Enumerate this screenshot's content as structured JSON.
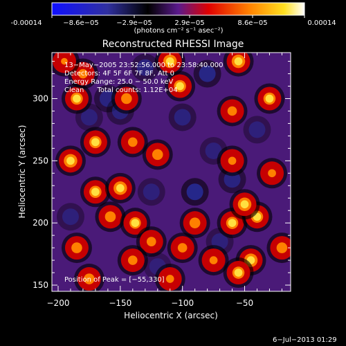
{
  "colorbar": {
    "ticks": [
      "-0.00014",
      "−8.6e−05",
      "−2.9e−05",
      "2.9e−05",
      "8.6e−05",
      "0.00014"
    ],
    "unit_label": "(photons cm⁻² s⁻¹ asec⁻²)",
    "colors": [
      "#1010ff",
      "#000000",
      "#5a1a8c",
      "#e00000",
      "#ff8000",
      "#ffe020",
      "#ffffff"
    ]
  },
  "chart_data": {
    "type": "heatmap",
    "title": "Reconstructed RHESSI Image",
    "xlabel": "Heliocentric X (arcsec)",
    "ylabel": "Heliocentric Y (arcsec)",
    "xlim": [
      -205,
      -13
    ],
    "ylim": [
      145,
      337
    ],
    "x_ticks": [
      -200,
      -150,
      -100,
      -50
    ],
    "x_tick_labels": [
      "−200",
      "−150",
      "−100",
      "−50"
    ],
    "y_ticks": [
      150,
      200,
      250,
      300
    ],
    "y_tick_labels": [
      "150",
      "200",
      "250",
      "300"
    ],
    "annotations": [
      "13−May−2005 23:52:56.000 to 23:58:40.000",
      "Detectors: 4F 5F 6F 7F 8F, Att 0",
      "Energy Range: 25.0 − 50.0 keV",
      "Clean      Total counts: 1.12E+04"
    ],
    "peak_label": "Position of Peak = [−55,330]",
    "peak": [
      -55,
      330
    ],
    "sources": [
      {
        "x": -110,
        "y": 330,
        "v": 1.0
      },
      {
        "x": -102,
        "y": 310,
        "v": 0.9
      },
      {
        "x": -55,
        "y": 330,
        "v": 1.0
      },
      {
        "x": -30,
        "y": 300,
        "v": 0.9
      },
      {
        "x": -60,
        "y": 290,
        "v": 0.7
      },
      {
        "x": -185,
        "y": 300,
        "v": 0.9
      },
      {
        "x": -180,
        "y": 320,
        "v": 0.7
      },
      {
        "x": -170,
        "y": 265,
        "v": 0.9
      },
      {
        "x": -145,
        "y": 300,
        "v": 0.8
      },
      {
        "x": -140,
        "y": 265,
        "v": 0.7
      },
      {
        "x": -120,
        "y": 255,
        "v": 0.8
      },
      {
        "x": -190,
        "y": 250,
        "v": 1.0
      },
      {
        "x": -170,
        "y": 225,
        "v": 0.9
      },
      {
        "x": -150,
        "y": 228,
        "v": 1.0
      },
      {
        "x": -158,
        "y": 205,
        "v": 0.8
      },
      {
        "x": -138,
        "y": 200,
        "v": 0.85
      },
      {
        "x": -125,
        "y": 185,
        "v": 0.7
      },
      {
        "x": -185,
        "y": 180,
        "v": 0.8
      },
      {
        "x": -140,
        "y": 170,
        "v": 0.7
      },
      {
        "x": -90,
        "y": 200,
        "v": 0.8
      },
      {
        "x": -100,
        "y": 180,
        "v": 0.7
      },
      {
        "x": -60,
        "y": 200,
        "v": 0.9
      },
      {
        "x": -40,
        "y": 205,
        "v": 0.9
      },
      {
        "x": -50,
        "y": 215,
        "v": 1.0
      },
      {
        "x": -45,
        "y": 170,
        "v": 1.0
      },
      {
        "x": -20,
        "y": 180,
        "v": 0.8
      },
      {
        "x": -75,
        "y": 170,
        "v": 0.6
      },
      {
        "x": -110,
        "y": 155,
        "v": 0.6
      },
      {
        "x": -175,
        "y": 155,
        "v": 0.8
      },
      {
        "x": -60,
        "y": 250,
        "v": 0.6
      },
      {
        "x": -28,
        "y": 240,
        "v": 0.6
      },
      {
        "x": -55,
        "y": 160,
        "v": 0.9
      },
      {
        "x": -195,
        "y": 330,
        "v": 0.5
      }
    ],
    "negatives": [
      {
        "x": -160,
        "y": 300,
        "v": 0.8
      },
      {
        "x": -150,
        "y": 290,
        "v": 0.7
      },
      {
        "x": -80,
        "y": 320,
        "v": 0.9
      },
      {
        "x": -130,
        "y": 325,
        "v": 0.7
      },
      {
        "x": -100,
        "y": 285,
        "v": 0.7
      },
      {
        "x": -75,
        "y": 258,
        "v": 0.6
      },
      {
        "x": -90,
        "y": 225,
        "v": 1.0
      },
      {
        "x": -60,
        "y": 235,
        "v": 0.8
      },
      {
        "x": -125,
        "y": 225,
        "v": 0.6
      },
      {
        "x": -190,
        "y": 205,
        "v": 0.6
      },
      {
        "x": -40,
        "y": 275,
        "v": 0.6
      },
      {
        "x": -70,
        "y": 185,
        "v": 0.6
      },
      {
        "x": -120,
        "y": 165,
        "v": 0.5
      },
      {
        "x": -175,
        "y": 285,
        "v": 0.6
      }
    ]
  },
  "footer_date": "6−Jul−2013 01:29"
}
